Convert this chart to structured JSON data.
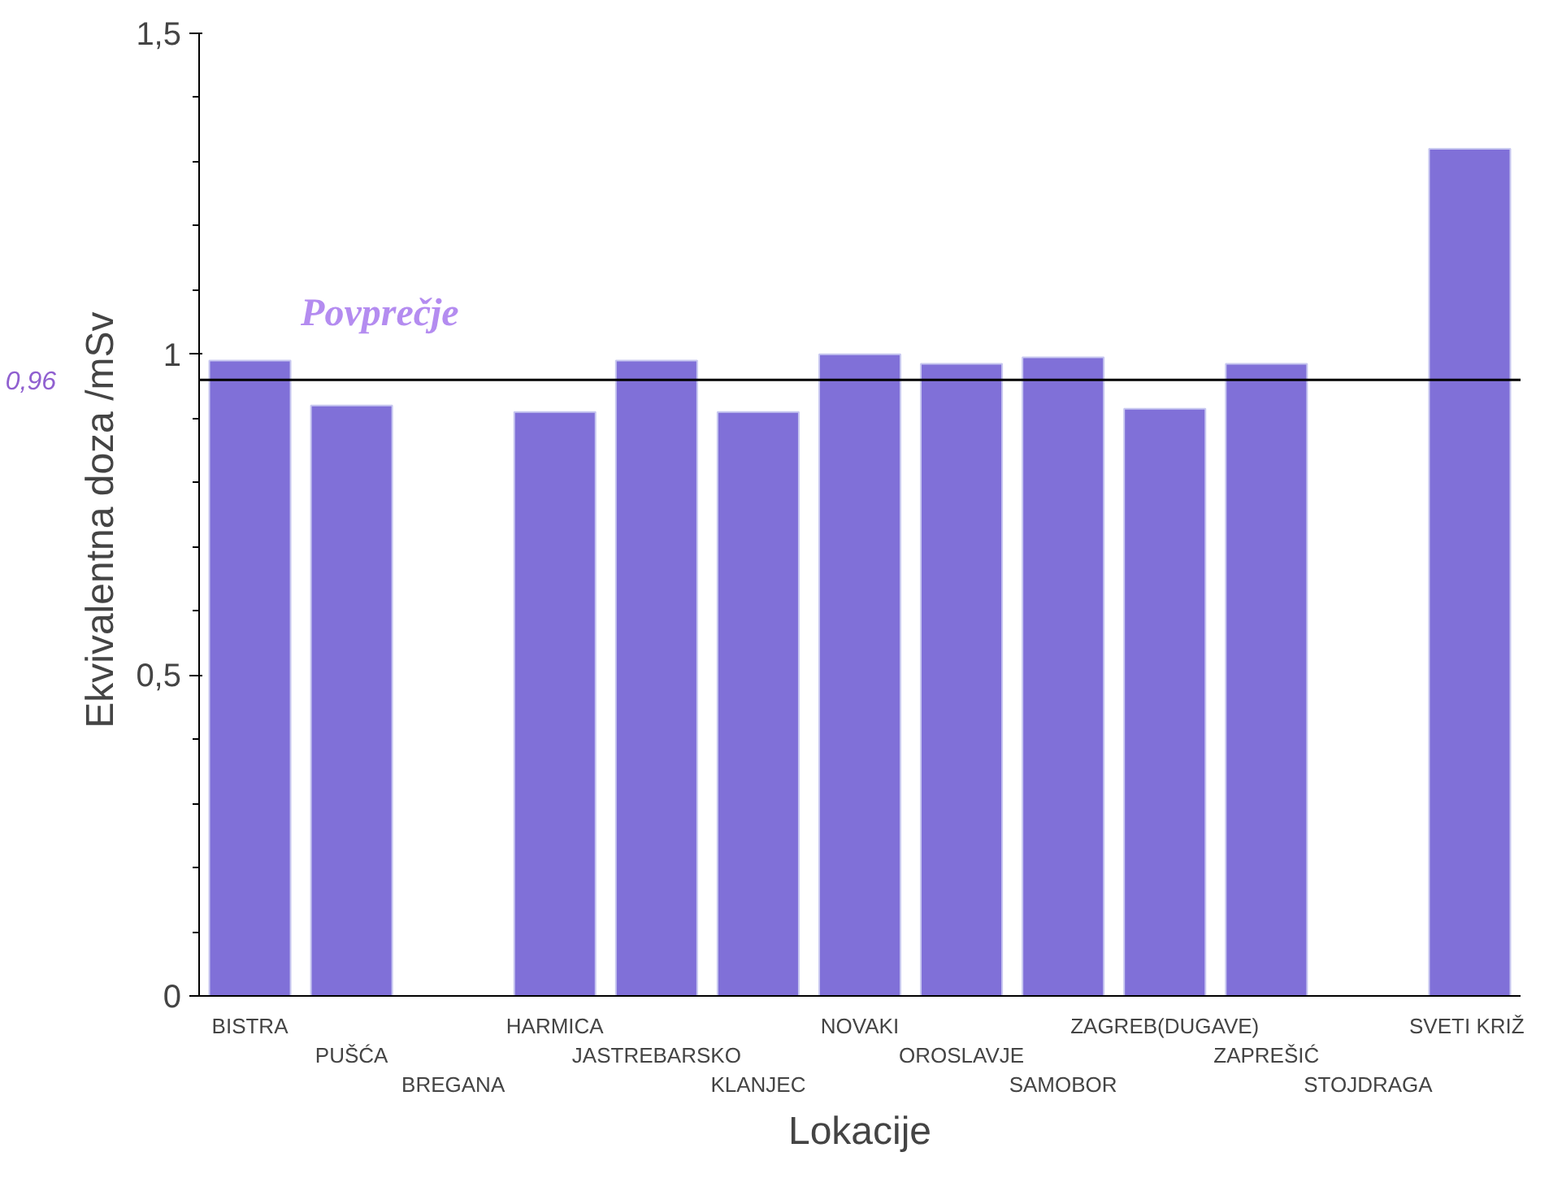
{
  "chart_data": {
    "type": "bar",
    "xlabel": "Lokacije",
    "ylabel": "Ekvivalentna doza  /mSv",
    "categories": [
      "BISTRA",
      "PUŠĆA",
      "BREGANA",
      "HARMICA",
      "JASTREBARSKO",
      "KLANJEC",
      "NOVAKI",
      "OROSLAVJE",
      "SAMOBOR",
      "ZAGREB(DUGAVE)",
      "ZAPREŠIĆ",
      "STOJDRAGA",
      "SVETI  KRIŽ"
    ],
    "values": [
      0.99,
      0.92,
      null,
      0.91,
      0.99,
      0.91,
      1.0,
      0.985,
      0.995,
      0.915,
      0.985,
      null,
      1.32
    ],
    "color": "#8070d8",
    "ylim": [
      0,
      1.5
    ],
    "yticks": [
      {
        "value": 0,
        "label": "0"
      },
      {
        "value": 0.5,
        "label": "0,5"
      },
      {
        "value": 1,
        "label": "1"
      },
      {
        "value": 1.5,
        "label": "1,5"
      }
    ],
    "ref_lines": [
      {
        "axis": "y",
        "value": 0.96,
        "label": "Povprečje",
        "color": "#000000"
      }
    ],
    "annotations": [
      "0,96"
    ],
    "grid": false,
    "legend": false
  }
}
